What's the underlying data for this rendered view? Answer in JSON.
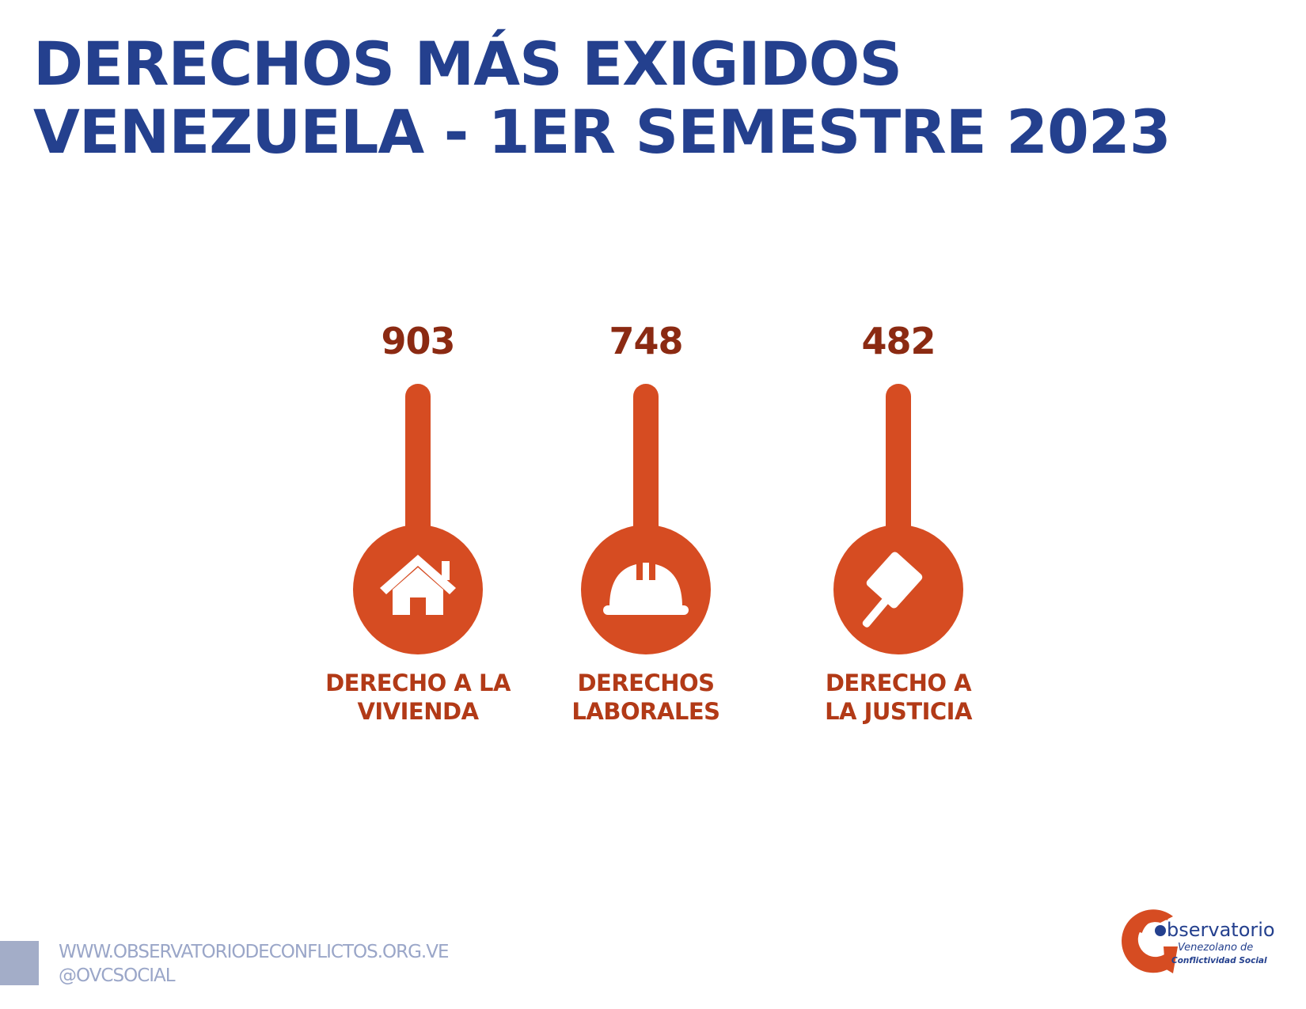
{
  "title": {
    "line1": "DERECHOS MÁS EXIGIDOS",
    "line2": "VENEZUELA - 1ER SEMESTRE 2023"
  },
  "chart_data": {
    "type": "bar",
    "categories": [
      "DERECHO A LA VIVIENDA",
      "DERECHOS LABORALES",
      "DERECHO A LA JUSTICIA"
    ],
    "values": [
      903,
      748,
      482
    ],
    "items": [
      {
        "value": "903",
        "label_line1": "DERECHO A LA",
        "label_line2": "VIVIENDA",
        "icon": "house-icon"
      },
      {
        "value": "748",
        "label_line1": "DERECHOS",
        "label_line2": "LABORALES",
        "icon": "hard-hat-icon"
      },
      {
        "value": "482",
        "label_line1": "DERECHO A",
        "label_line2": "LA JUSTICIA",
        "icon": "gavel-icon"
      }
    ],
    "colors": {
      "accent": "#d64c22",
      "value_text": "#8b2a12",
      "label_text": "#b23a17",
      "title": "#24408e"
    }
  },
  "footer": {
    "website": "WWW.OBSERVATORIODECONFLICTOS.ORG.VE",
    "handle": "@OVCSOCIAL"
  },
  "logo": {
    "name": "bservatorio",
    "line2": "Venezolano de",
    "line3": "Conflictividad Social"
  }
}
